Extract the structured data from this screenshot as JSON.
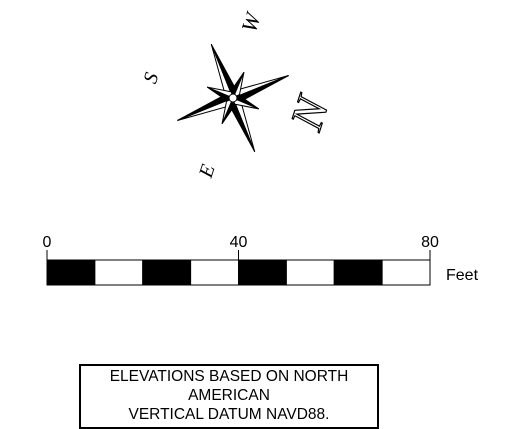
{
  "compass": {
    "labels": {
      "north": "N",
      "south": "S",
      "east": "E",
      "west": "W"
    },
    "fill_color": "#000000"
  },
  "scale_bar": {
    "tick_labels": [
      "0",
      "40",
      "80"
    ],
    "tick_values": [
      0,
      40,
      80
    ],
    "max_value": 80,
    "segment_count": 8,
    "unit": "Feet",
    "colors": {
      "dark": "#000000",
      "light": "#ffffff"
    }
  },
  "note": {
    "line1": "ELEVATIONS BASED ON NORTH AMERICAN",
    "line2": "VERTICAL DATUM NAVD88."
  }
}
